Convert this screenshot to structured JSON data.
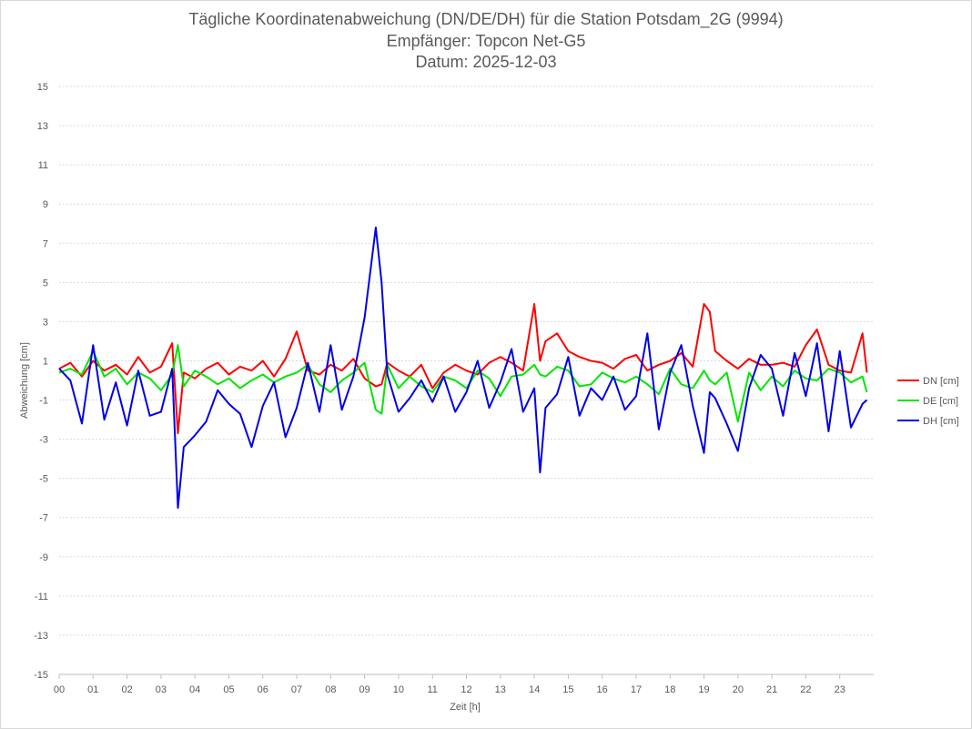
{
  "chart_data": {
    "type": "line",
    "title": "Tägliche Koordinatenabweichung (DN/DE/DH) für die Station Potsdam_2G (9994)",
    "subtitle": "Empfänger: Topcon Net-G5",
    "date_line": "Datum: 2025-12-03",
    "xlabel": "Zeit [h]",
    "ylabel": "Abweichung [cm]",
    "xlim": [
      0,
      24
    ],
    "ylim": [
      -15,
      15
    ],
    "x_ticks": [
      0,
      1,
      2,
      3,
      4,
      5,
      6,
      7,
      8,
      9,
      10,
      11,
      12,
      13,
      14,
      15,
      16,
      17,
      18,
      19,
      20,
      21,
      22,
      23
    ],
    "x_tick_labels": [
      "00",
      "01",
      "02",
      "03",
      "04",
      "05",
      "06",
      "07",
      "08",
      "09",
      "10",
      "11",
      "12",
      "13",
      "14",
      "15",
      "16",
      "17",
      "18",
      "19",
      "20",
      "21",
      "22",
      "23"
    ],
    "y_ticks": [
      15,
      13,
      11,
      9,
      7,
      5,
      3,
      1,
      -1,
      -3,
      -5,
      -7,
      -9,
      -11,
      -13,
      -15
    ],
    "grid": true,
    "legend_position": "right",
    "x": [
      0.0,
      0.33,
      0.67,
      1.0,
      1.33,
      1.67,
      2.0,
      2.33,
      2.67,
      3.0,
      3.33,
      3.5,
      3.67,
      4.0,
      4.33,
      4.67,
      5.0,
      5.33,
      5.67,
      6.0,
      6.33,
      6.67,
      7.0,
      7.33,
      7.67,
      8.0,
      8.33,
      8.67,
      9.0,
      9.33,
      9.5,
      9.67,
      10.0,
      10.33,
      10.67,
      11.0,
      11.33,
      11.67,
      12.0,
      12.33,
      12.67,
      13.0,
      13.33,
      13.67,
      14.0,
      14.17,
      14.33,
      14.67,
      15.0,
      15.33,
      15.67,
      16.0,
      16.33,
      16.67,
      17.0,
      17.33,
      17.67,
      18.0,
      18.33,
      18.67,
      19.0,
      19.17,
      19.33,
      19.67,
      20.0,
      20.33,
      20.67,
      21.0,
      21.33,
      21.67,
      22.0,
      22.33,
      22.67,
      23.0,
      23.33,
      23.67,
      23.8
    ],
    "series": [
      {
        "name": "DN [cm]",
        "color": "#ff0000",
        "values": [
          0.6,
          0.9,
          0.2,
          1.0,
          0.5,
          0.8,
          0.3,
          1.2,
          0.4,
          0.7,
          1.9,
          -2.7,
          0.4,
          0.1,
          0.6,
          0.9,
          0.3,
          0.7,
          0.5,
          1.0,
          0.2,
          1.1,
          2.5,
          0.5,
          0.3,
          0.8,
          0.5,
          1.1,
          0.1,
          -0.3,
          -0.2,
          0.9,
          0.5,
          0.2,
          0.8,
          -0.4,
          0.4,
          0.8,
          0.5,
          0.3,
          0.9,
          1.2,
          0.9,
          0.5,
          3.9,
          1.0,
          2.0,
          2.4,
          1.5,
          1.2,
          1.0,
          0.9,
          0.6,
          1.1,
          1.3,
          0.5,
          0.8,
          1.0,
          1.4,
          0.7,
          3.9,
          3.5,
          1.5,
          1.0,
          0.6,
          1.1,
          0.8,
          0.8,
          0.9,
          0.7,
          1.8,
          2.6,
          0.8,
          0.5,
          0.4,
          2.4,
          0.4
        ]
      },
      {
        "name": "DE [cm]",
        "color": "#00e600",
        "values": [
          0.4,
          0.6,
          0.3,
          1.5,
          0.2,
          0.6,
          -0.2,
          0.4,
          0.1,
          -0.5,
          0.3,
          1.8,
          -0.3,
          0.5,
          0.2,
          -0.2,
          0.1,
          -0.4,
          0.0,
          0.3,
          -0.1,
          0.2,
          0.4,
          0.8,
          -0.2,
          -0.6,
          0.0,
          0.4,
          0.9,
          -1.5,
          -1.7,
          0.8,
          -0.4,
          0.2,
          -0.3,
          -0.6,
          0.2,
          0.0,
          -0.4,
          0.5,
          0.1,
          -0.8,
          0.2,
          0.3,
          0.8,
          0.3,
          0.2,
          0.7,
          0.5,
          -0.3,
          -0.2,
          0.4,
          0.1,
          -0.1,
          0.2,
          -0.2,
          -0.7,
          0.6,
          -0.2,
          -0.4,
          0.5,
          0.0,
          -0.2,
          0.4,
          -2.1,
          0.4,
          -0.5,
          0.2,
          -0.3,
          0.5,
          0.1,
          0.0,
          0.6,
          0.4,
          -0.1,
          0.2,
          -0.6
        ]
      },
      {
        "name": "DH [cm]",
        "color": "#0000e6",
        "values": [
          0.6,
          0.0,
          -2.2,
          1.8,
          -2.0,
          -0.1,
          -2.3,
          0.5,
          -1.8,
          -1.6,
          0.6,
          -6.5,
          -3.4,
          -2.8,
          -2.1,
          -0.5,
          -1.2,
          -1.7,
          -3.4,
          -1.3,
          -0.1,
          -2.9,
          -1.4,
          0.9,
          -1.6,
          1.8,
          -1.5,
          0.2,
          3.2,
          7.8,
          5.0,
          0.3,
          -1.6,
          -0.9,
          0.0,
          -1.1,
          0.2,
          -1.6,
          -0.6,
          1.0,
          -1.4,
          -0.1,
          1.6,
          -1.6,
          -0.4,
          -4.7,
          -1.4,
          -0.7,
          1.2,
          -1.8,
          -0.4,
          -1.0,
          0.2,
          -1.5,
          -0.8,
          2.4,
          -2.5,
          0.4,
          1.8,
          -1.3,
          -3.7,
          -0.6,
          -0.9,
          -2.2,
          -3.6,
          -0.4,
          1.3,
          0.6,
          -1.8,
          1.4,
          -0.8,
          1.9,
          -2.6,
          1.5,
          -2.4,
          -1.2,
          -1.0
        ]
      }
    ]
  }
}
